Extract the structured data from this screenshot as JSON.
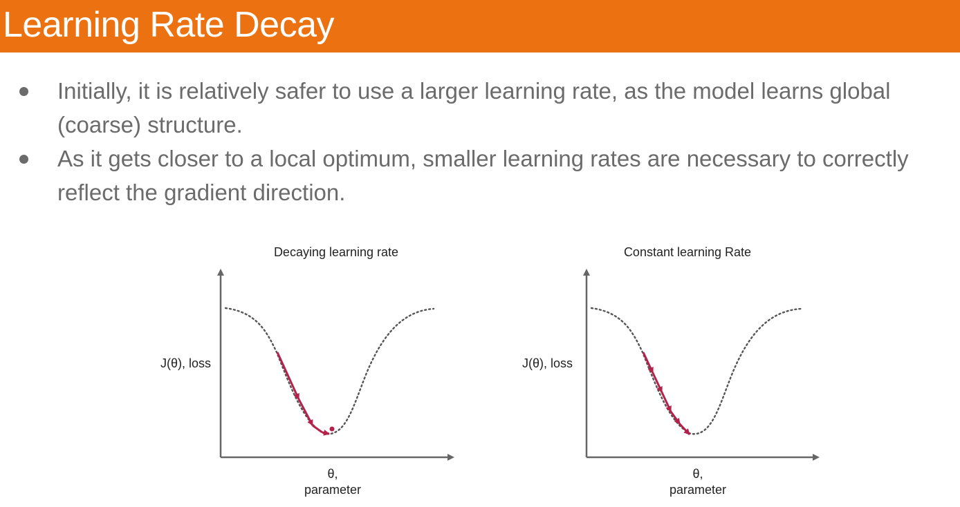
{
  "title": "Learning Rate Decay",
  "bullets": [
    "Initially, it is relatively safer to use a larger learning rate, as the model learns global (coarse) structure.",
    "As it gets closer to a local optimum, smaller learning rates are necessary to correctly reflect the gradient direction."
  ],
  "diagrams": [
    {
      "title": "Decaying learning rate",
      "ylabel": "J(θ), loss",
      "xlabel_line1": "θ,",
      "xlabel_line2": "parameter"
    },
    {
      "title": "Constant learning Rate",
      "ylabel": "J(θ), loss",
      "xlabel_line1": "θ,",
      "xlabel_line2": "parameter"
    }
  ],
  "colors": {
    "title_bar": "#ec7211",
    "bullet_text": "#6b6b6b",
    "step_path": "#b5214b",
    "curve": "#555555"
  }
}
